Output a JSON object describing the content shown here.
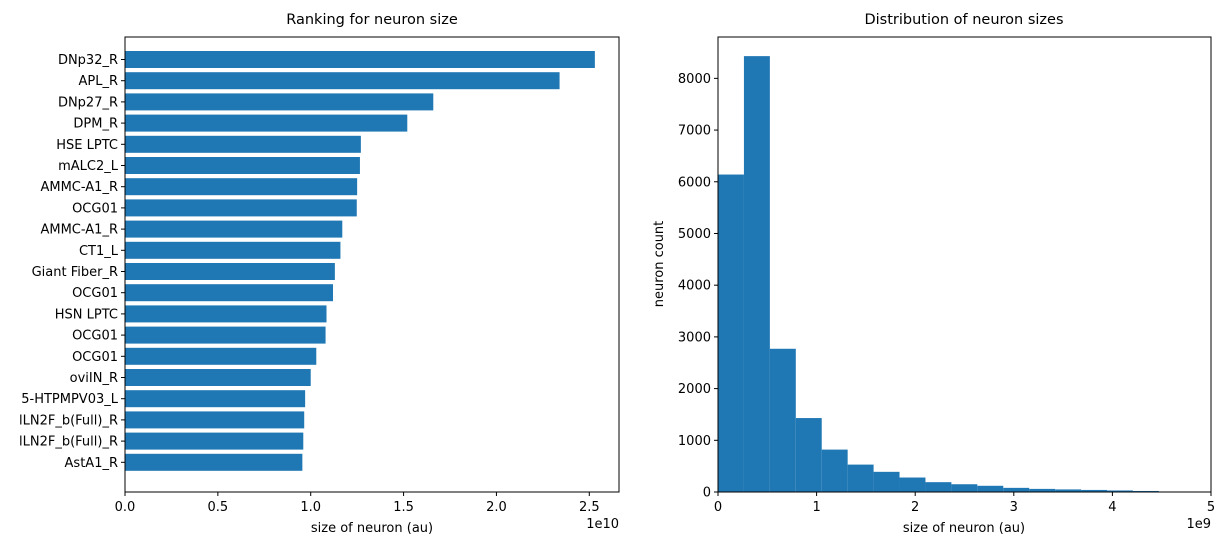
{
  "chart_data": [
    {
      "type": "bar",
      "orientation": "horizontal",
      "title": "Ranking for neuron size",
      "xlabel": "size of neuron (au)",
      "ylabel": "",
      "x_offset_label": "1e10",
      "xlim": [
        0,
        26600000000.0
      ],
      "xticks": [
        {
          "value": 0,
          "label": "0.0"
        },
        {
          "value": 5000000000.0,
          "label": "0.5"
        },
        {
          "value": 10000000000.0,
          "label": "1.0"
        },
        {
          "value": 15000000000.0,
          "label": "1.5"
        },
        {
          "value": 20000000000.0,
          "label": "2.0"
        },
        {
          "value": 25000000000.0,
          "label": "2.5"
        }
      ],
      "bar_color": "#1f77b4",
      "categories": [
        "DNp32_R",
        "APL_R",
        "DNp27_R",
        "DPM_R",
        "HSE LPTC",
        "mALC2_L",
        "AMMC-A1_R",
        "OCG01",
        "AMMC-A1_R",
        "CT1_L",
        "Giant Fiber_R",
        "OCG01",
        "HSN LPTC",
        "OCG01",
        "OCG01",
        "oviIN_R",
        "5-HTPMPV03_L",
        "lLN2F_b(Full)_R",
        "lLN2F_b(Full)_R",
        "AstA1_R"
      ],
      "values": [
        25300000000.0,
        23400000000.0,
        16600000000.0,
        15200000000.0,
        12700000000.0,
        12650000000.0,
        12500000000.0,
        12480000000.0,
        11700000000.0,
        11600000000.0,
        11300000000.0,
        11200000000.0,
        10850000000.0,
        10800000000.0,
        10300000000.0,
        10000000000.0,
        9700000000.0,
        9650000000.0,
        9600000000.0,
        9550000000.0
      ]
    },
    {
      "type": "histogram",
      "title": "Distribution of neuron sizes",
      "xlabel": "size of neuron (au)",
      "ylabel": "neuron count",
      "x_offset_label": "1e9",
      "xlim": [
        0,
        5000000000.0
      ],
      "ylim": [
        0,
        8800
      ],
      "xticks": [
        {
          "value": 0,
          "label": "0"
        },
        {
          "value": 1000000000.0,
          "label": "1"
        },
        {
          "value": 2000000000.0,
          "label": "2"
        },
        {
          "value": 3000000000.0,
          "label": "3"
        },
        {
          "value": 4000000000.0,
          "label": "4"
        },
        {
          "value": 5000000000.0,
          "label": "5"
        }
      ],
      "yticks": [
        0,
        1000,
        2000,
        3000,
        4000,
        5000,
        6000,
        7000,
        8000
      ],
      "bar_color": "#1f77b4",
      "bin_width": 263000000.0,
      "bin_edges_start": 0,
      "counts": [
        6140,
        8430,
        2770,
        1430,
        820,
        530,
        390,
        280,
        190,
        150,
        120,
        80,
        60,
        50,
        40,
        30,
        20,
        10,
        10
      ]
    }
  ]
}
